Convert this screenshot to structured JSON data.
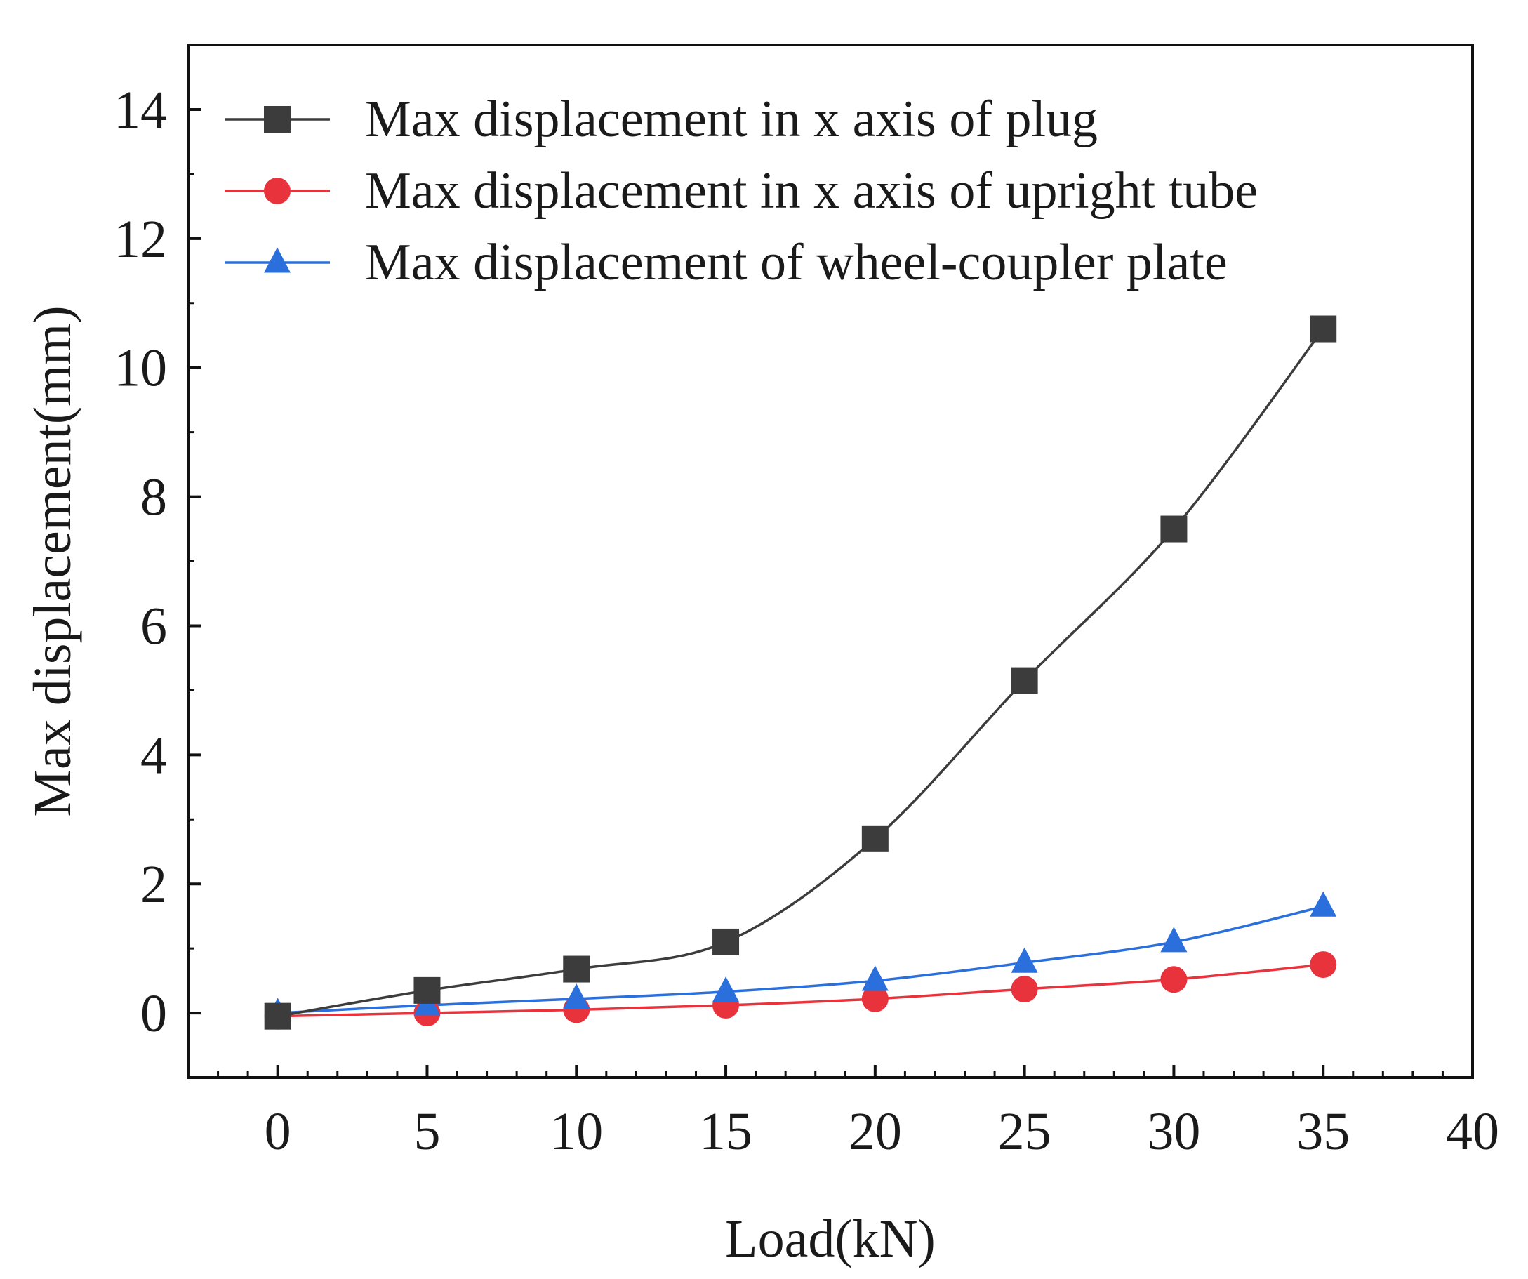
{
  "chart_data": {
    "type": "line",
    "title": "",
    "xlabel": "Load(kN)",
    "ylabel": "Max displacement(mm)",
    "xlim": [
      -3,
      40
    ],
    "ylim": [
      -1,
      15
    ],
    "xticks": [
      0,
      5,
      10,
      15,
      20,
      25,
      30,
      35,
      40
    ],
    "yticks": [
      0,
      2,
      4,
      6,
      8,
      10,
      12,
      14
    ],
    "x": [
      0,
      5,
      10,
      15,
      20,
      25,
      30,
      35
    ],
    "legend_position": "top-left",
    "grid": false,
    "series": [
      {
        "name": "Max displacement in x axis of plug",
        "marker": "square",
        "color": "#3c3c3c",
        "values": [
          -0.05,
          0.35,
          0.68,
          1.1,
          2.7,
          5.15,
          7.5,
          10.6
        ]
      },
      {
        "name": "Max displacement in x axis of upright tube",
        "marker": "circle",
        "color": "#e8323c",
        "values": [
          -0.05,
          0.0,
          0.05,
          0.12,
          0.22,
          0.37,
          0.52,
          0.75
        ]
      },
      {
        "name": "Max displacement of wheel-coupler plate",
        "marker": "triangle",
        "color": "#2a6fdb",
        "values": [
          0.0,
          0.12,
          0.22,
          0.33,
          0.5,
          0.78,
          1.1,
          1.65
        ]
      }
    ]
  }
}
